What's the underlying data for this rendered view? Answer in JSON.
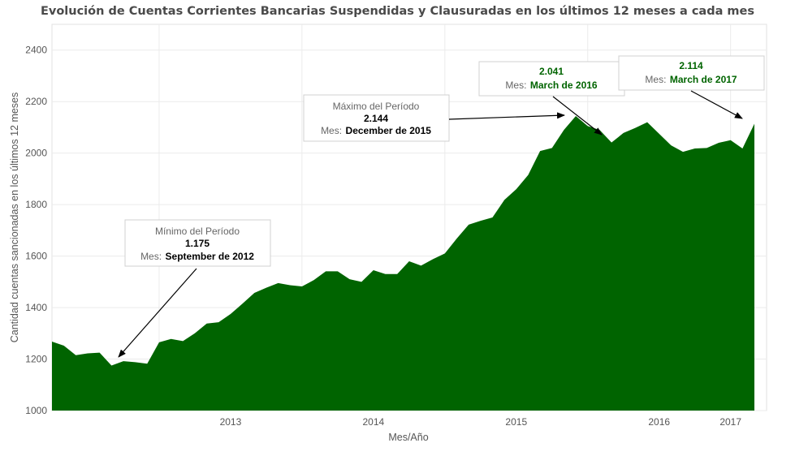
{
  "chart_data": {
    "type": "area",
    "title": "Evolución de Cuentas Corrientes Bancarias Suspendidas y Clausuradas en los últimos 12 meses a cada mes",
    "xlabel": "Mes/Año",
    "ylabel": "Cantidad cuentas sancionadas en los últimos 12 meses",
    "ylim": [
      1000,
      2500
    ],
    "yticks": [
      1000,
      1200,
      1400,
      1600,
      1800,
      2000,
      2200,
      2400
    ],
    "xticks": [
      "2013",
      "2014",
      "2015",
      "2016",
      "2017"
    ],
    "grid": true,
    "fill_color": "#006400",
    "x": [
      "2012-04",
      "2012-05",
      "2012-06",
      "2012-07",
      "2012-08",
      "2012-09",
      "2012-10",
      "2012-11",
      "2012-12",
      "2013-01",
      "2013-02",
      "2013-03",
      "2013-04",
      "2013-05",
      "2013-06",
      "2013-07",
      "2013-08",
      "2013-09",
      "2013-10",
      "2013-11",
      "2013-12",
      "2014-01",
      "2014-02",
      "2014-03",
      "2014-04",
      "2014-05",
      "2014-06",
      "2014-07",
      "2014-08",
      "2014-09",
      "2014-10",
      "2014-11",
      "2014-12",
      "2015-01",
      "2015-02",
      "2015-03",
      "2015-04",
      "2015-05",
      "2015-06",
      "2015-07",
      "2015-08",
      "2015-09",
      "2015-10",
      "2015-11",
      "2015-12",
      "2016-01",
      "2016-02",
      "2016-03",
      "2016-04",
      "2016-05",
      "2016-06",
      "2016-07",
      "2016-08",
      "2016-09",
      "2016-10",
      "2016-11",
      "2016-12",
      "2017-01",
      "2017-02",
      "2017-03"
    ],
    "values": [
      1268,
      1252,
      1215,
      1222,
      1225,
      1175,
      1192,
      1188,
      1182,
      1265,
      1278,
      1270,
      1300,
      1338,
      1343,
      1375,
      1415,
      1457,
      1477,
      1495,
      1487,
      1482,
      1507,
      1541,
      1541,
      1510,
      1500,
      1545,
      1530,
      1530,
      1580,
      1563,
      1588,
      1610,
      1668,
      1722,
      1737,
      1750,
      1818,
      1860,
      1915,
      2008,
      2020,
      2090,
      2144,
      2105,
      2090,
      2041,
      2078,
      2098,
      2120,
      2075,
      2030,
      2005,
      2018,
      2020,
      2040,
      2050,
      2018,
      2114
    ]
  },
  "annotations": {
    "min": {
      "title": "Mínimo del Período",
      "value": "1.175",
      "month_label": "Mes:",
      "month": "September de 2012",
      "x": "2012-09",
      "y": 1175
    },
    "max": {
      "title": "Máximo del Período",
      "value": "2.144",
      "month_label": "Mes:",
      "month": "December de 2015",
      "x": "2015-12",
      "y": 2144
    },
    "mar2016": {
      "value": "2.041",
      "month_label": "Mes:",
      "month": "March de 2016",
      "x": "2016-03",
      "y": 2041
    },
    "mar2017": {
      "value": "2.114",
      "month_label": "Mes:",
      "month": "March de 2017",
      "x": "2017-03",
      "y": 2114
    }
  }
}
